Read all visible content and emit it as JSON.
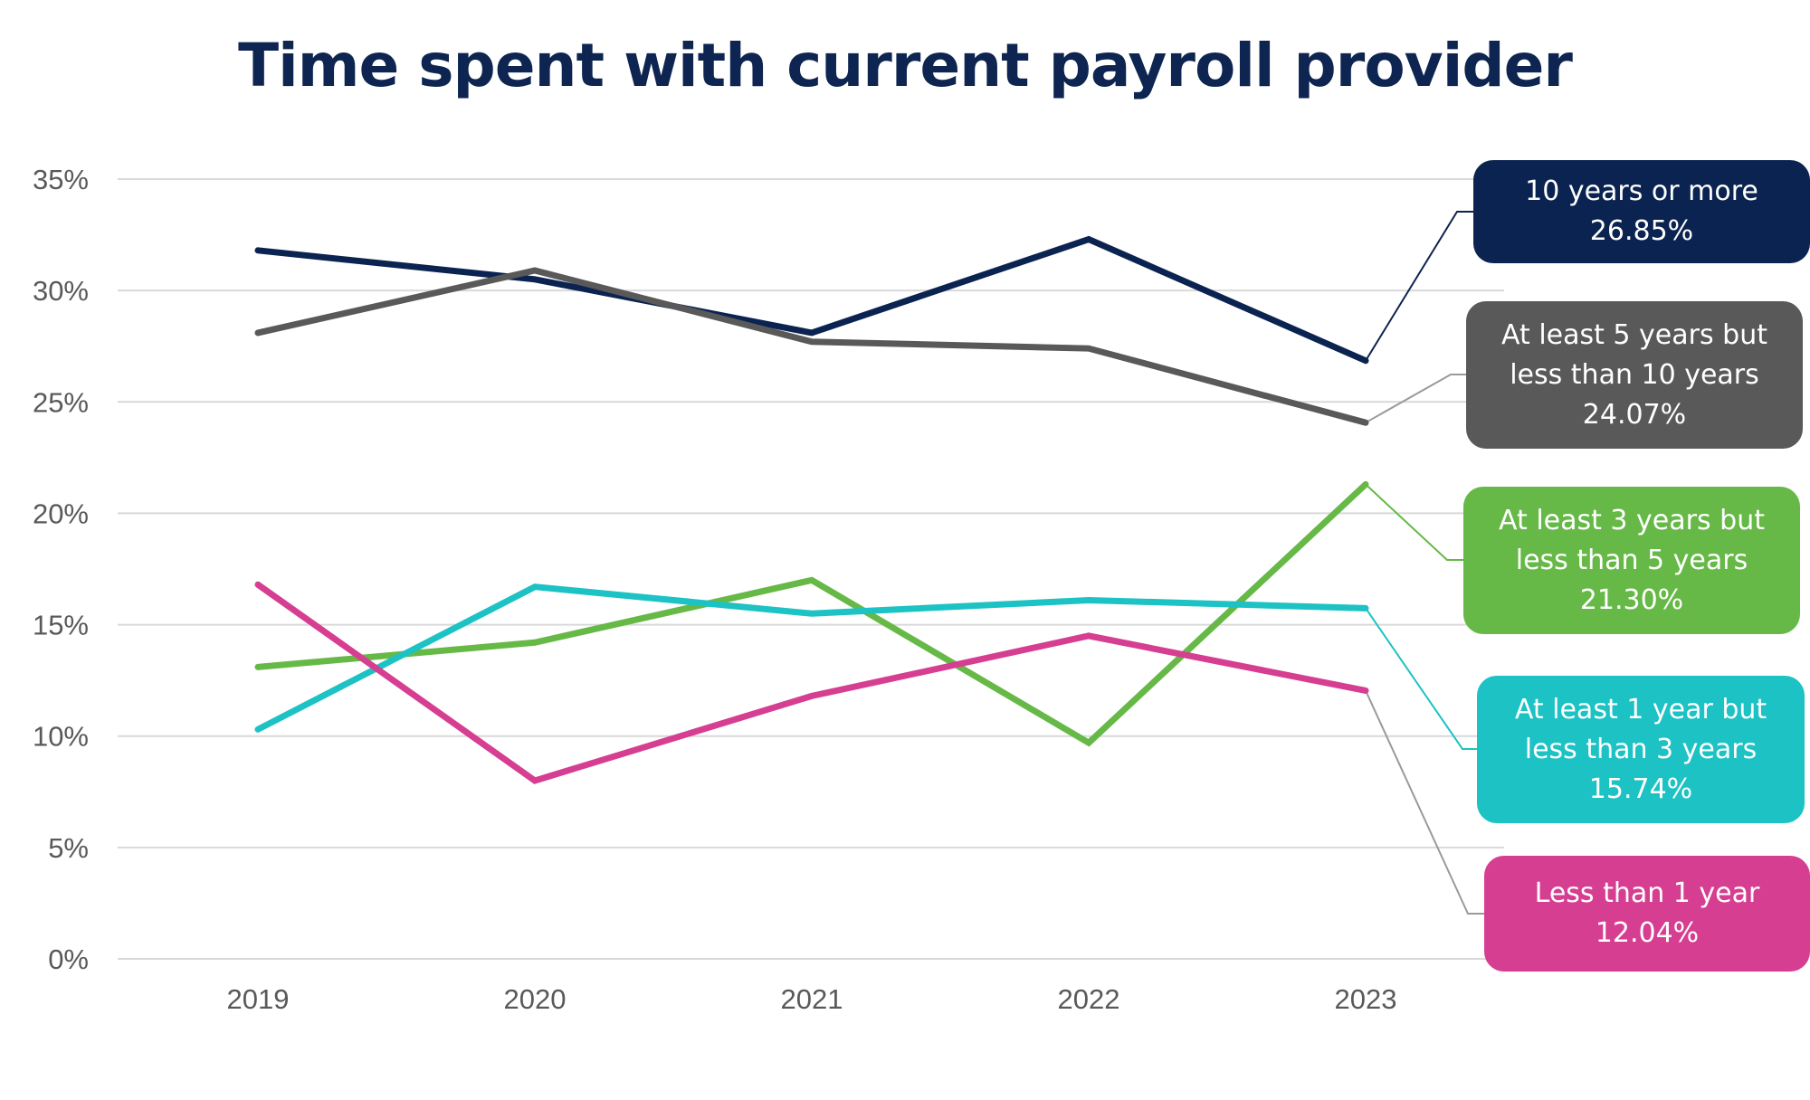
{
  "chart_data": {
    "type": "line",
    "title": "Time spent with current payroll provider",
    "x": [
      "2019",
      "2020",
      "2021",
      "2022",
      "2023"
    ],
    "ylim": [
      0,
      35
    ],
    "yticks": [
      "0%",
      "5%",
      "10%",
      "15%",
      "20%",
      "25%",
      "30%",
      "35%"
    ],
    "grid": true,
    "legend": "right, callout labels",
    "series": [
      {
        "name": "10 years or more",
        "color": "#0b2350",
        "values": [
          31.8,
          30.5,
          28.1,
          32.3,
          26.85
        ],
        "label_lines": [
          "10 years or more",
          "26.85%"
        ]
      },
      {
        "name": "At least 5 years but less than 10 years",
        "color": "#595959",
        "values": [
          28.1,
          30.9,
          27.7,
          27.4,
          24.07
        ],
        "label_lines": [
          "At least 5 years but",
          "less than 10 years",
          "24.07%"
        ]
      },
      {
        "name": "At least 3 years but less than 5 years",
        "color": "#66b947",
        "values": [
          13.1,
          14.2,
          17.0,
          9.7,
          21.3
        ],
        "label_lines": [
          "At least 3 years but",
          "less than 5 years",
          "21.30%"
        ]
      },
      {
        "name": "At least 1 year but less than 3 years",
        "color": "#1cc2c4",
        "values": [
          10.3,
          16.7,
          15.5,
          16.1,
          15.74
        ],
        "label_lines": [
          "At least 1 year but",
          "less than 3 years",
          "15.74%"
        ]
      },
      {
        "name": "Less than 1 year",
        "color": "#d63e91",
        "values": [
          16.8,
          8.0,
          11.8,
          14.5,
          12.04
        ],
        "label_lines": [
          "Less than 1 year",
          "12.04%"
        ]
      }
    ]
  }
}
